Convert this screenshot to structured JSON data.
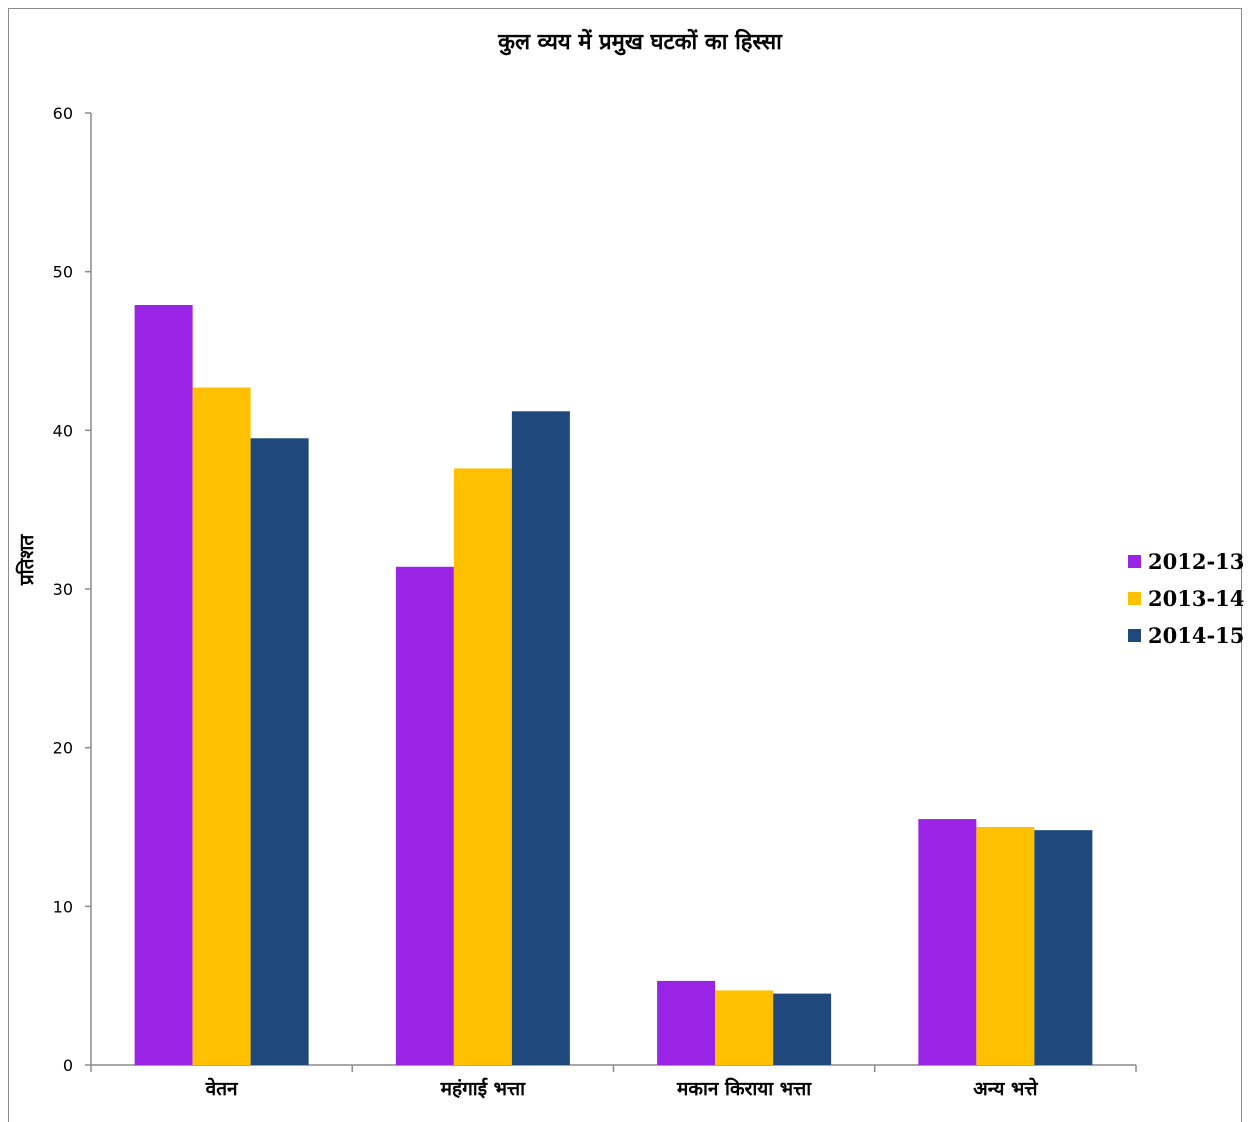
{
  "chart_data": {
    "type": "bar",
    "title": "कुल व्यय में प्रमुख घटकों का हिस्सा",
    "xlabel": "",
    "ylabel": "प्रतिशत",
    "categories": [
      "वेतन",
      "महंगाई भत्ता",
      "मकान किराया भत्ता",
      "अन्य भत्ते"
    ],
    "series": [
      {
        "name": "2012-13",
        "color": "#9a24e6",
        "values": [
          47.9,
          31.4,
          5.3,
          15.5
        ]
      },
      {
        "name": "2013-14",
        "color": "#ffc000",
        "values": [
          42.7,
          37.6,
          4.7,
          15.0
        ]
      },
      {
        "name": "2014-15",
        "color": "#1f497d",
        "values": [
          39.5,
          41.2,
          4.5,
          14.8
        ]
      }
    ],
    "ylim": [
      0,
      60
    ],
    "yticks": [
      0,
      10,
      20,
      30,
      40,
      50,
      60
    ],
    "grid": false,
    "legend_position": "right"
  }
}
